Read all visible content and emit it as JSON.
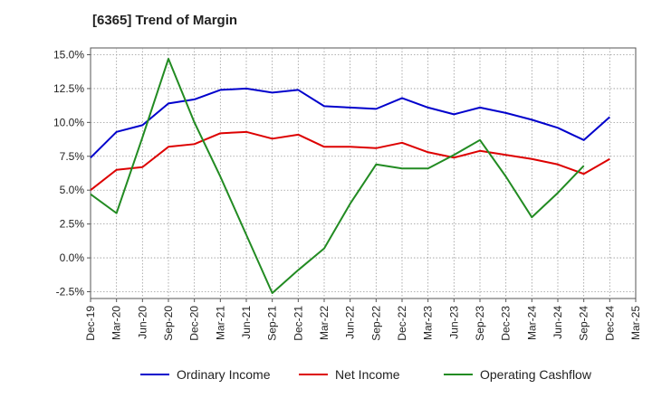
{
  "chart_data": {
    "type": "line",
    "title": "[6365]  Trend of Margin",
    "xlabel": "",
    "ylabel": "",
    "ylim": [
      -3.0,
      15.5
    ],
    "y_ticks": [
      15.0,
      12.5,
      10.0,
      7.5,
      5.0,
      2.5,
      0.0,
      -2.5
    ],
    "y_tick_labels": [
      "15.0%",
      "12.5%",
      "10.0%",
      "7.5%",
      "5.0%",
      "2.5%",
      "0.0%",
      "-2.5%"
    ],
    "categories": [
      "Dec-19",
      "Mar-20",
      "Jun-20",
      "Sep-20",
      "Dec-20",
      "Mar-21",
      "Jun-21",
      "Sep-21",
      "Dec-21",
      "Mar-22",
      "Jun-22",
      "Sep-22",
      "Dec-22",
      "Mar-23",
      "Jun-23",
      "Sep-23",
      "Dec-23",
      "Mar-24",
      "Jun-24",
      "Sep-24",
      "Dec-24",
      "Mar-25"
    ],
    "grid": true,
    "legend_position": "bottom",
    "series": [
      {
        "name": "Ordinary Income",
        "color": "#0000cc",
        "values": [
          7.4,
          9.3,
          9.8,
          11.4,
          11.7,
          12.4,
          12.5,
          12.2,
          12.4,
          11.2,
          11.1,
          11.0,
          11.8,
          11.1,
          10.6,
          11.1,
          10.7,
          10.2,
          9.6,
          8.7,
          10.4,
          null
        ]
      },
      {
        "name": "Net Income",
        "color": "#dd0000",
        "values": [
          5.0,
          6.5,
          6.7,
          8.2,
          8.4,
          9.2,
          9.3,
          8.8,
          9.1,
          8.2,
          8.2,
          8.1,
          8.5,
          7.8,
          7.4,
          7.9,
          7.6,
          7.3,
          6.9,
          6.2,
          7.3,
          null
        ]
      },
      {
        "name": "Operating Cashflow",
        "color": "#228b22",
        "values": [
          4.7,
          3.3,
          8.9,
          14.7,
          10.0,
          6.0,
          1.7,
          -2.6,
          -0.9,
          0.7,
          4.0,
          6.9,
          6.6,
          6.6,
          7.6,
          8.7,
          6.0,
          3.0,
          4.8,
          6.8,
          null,
          null
        ]
      }
    ]
  }
}
